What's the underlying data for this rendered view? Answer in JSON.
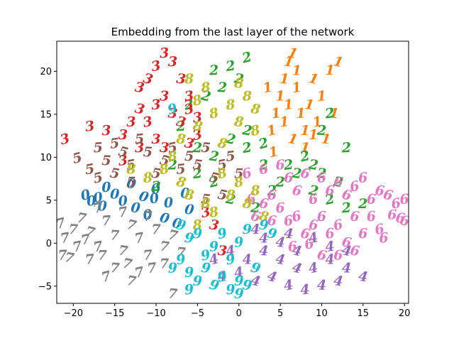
{
  "chart_data": {
    "type": "scatter",
    "title": "Embedding from the last layer of the network",
    "xlabel": "",
    "ylabel": "",
    "xlim": [
      -22,
      20.5
    ],
    "ylim": [
      -7,
      23.5
    ],
    "xticks": [
      -20,
      -15,
      -10,
      -5,
      0,
      5,
      10,
      15,
      20
    ],
    "yticks": [
      -5,
      0,
      5,
      10,
      15,
      20
    ],
    "grid": false,
    "colors": {
      "0": "#1f77b4",
      "1": "#ff7f0e",
      "2": "#2ca02c",
      "3": "#d62728",
      "4": "#9467bd",
      "5": "#8c564b",
      "6": "#e377c2",
      "7": "#7f7f7f",
      "8": "#bcbd22",
      "9": "#17becf"
    },
    "series": [
      {
        "label": "0",
        "points": [
          [
            -18.5,
            5.5
          ],
          [
            -17,
            5.2
          ],
          [
            -16,
            6.4
          ],
          [
            -15,
            5.6
          ],
          [
            -13,
            6.8
          ],
          [
            -11.5,
            5.3
          ],
          [
            -10.2,
            5.1
          ],
          [
            -8.5,
            4.6
          ],
          [
            -6.5,
            5.7
          ],
          [
            -6,
            3.8
          ],
          [
            -9,
            2.8
          ],
          [
            -11,
            3.2
          ],
          [
            -14,
            4.8
          ],
          [
            -16.5,
            4.2
          ],
          [
            -12.5,
            4.0
          ],
          [
            -7.5,
            2.2
          ],
          [
            -10,
            6.2
          ],
          [
            -17.8,
            4.8
          ]
        ]
      },
      {
        "label": "1",
        "points": [
          [
            4,
            13
          ],
          [
            4.5,
            15
          ],
          [
            5,
            17
          ],
          [
            5.5,
            19
          ],
          [
            6,
            21
          ],
          [
            6.5,
            22
          ],
          [
            7,
            18
          ],
          [
            7.5,
            15
          ],
          [
            8,
            13
          ],
          [
            8.5,
            16
          ],
          [
            9,
            19
          ],
          [
            9.5,
            14
          ],
          [
            10,
            17
          ],
          [
            11,
            20
          ],
          [
            10.5,
            12
          ],
          [
            6.5,
            12
          ],
          [
            3.5,
            18
          ],
          [
            5.5,
            14
          ],
          [
            7,
            20
          ],
          [
            8,
            11
          ],
          [
            12,
            21
          ],
          [
            4.2,
            10.5
          ],
          [
            6,
            16
          ],
          [
            9,
            12.5
          ],
          [
            11.5,
            15
          ]
        ]
      },
      {
        "label": "2",
        "points": [
          [
            1,
            21.5
          ],
          [
            -1,
            20.5
          ],
          [
            -3,
            20
          ],
          [
            -2,
            18
          ],
          [
            0,
            19
          ],
          [
            -4,
            17
          ],
          [
            -6,
            16
          ],
          [
            -7,
            13.5
          ],
          [
            -5,
            11
          ],
          [
            -3,
            10
          ],
          [
            -1,
            12
          ],
          [
            1,
            11
          ],
          [
            3,
            9
          ],
          [
            5,
            7
          ],
          [
            7,
            8
          ],
          [
            9,
            6
          ],
          [
            11,
            5
          ],
          [
            13,
            4
          ],
          [
            15,
            4.5
          ],
          [
            10,
            8
          ],
          [
            12,
            7
          ],
          [
            8,
            10
          ],
          [
            6,
            9
          ],
          [
            4,
            6
          ],
          [
            2,
            4
          ],
          [
            -1,
            5
          ],
          [
            -3,
            7
          ],
          [
            -5,
            8
          ],
          [
            -8,
            9
          ],
          [
            -10,
            6.5
          ],
          [
            1,
            13
          ],
          [
            3,
            11.5
          ],
          [
            11,
            15
          ],
          [
            13,
            11
          ],
          [
            10,
            13
          ],
          [
            9,
            9
          ]
        ]
      },
      {
        "label": "3",
        "points": [
          [
            -21,
            12
          ],
          [
            -18,
            13.5
          ],
          [
            -16,
            13
          ],
          [
            -14,
            12.5
          ],
          [
            -12,
            18
          ],
          [
            -11,
            19
          ],
          [
            -10,
            20.5
          ],
          [
            -9,
            22
          ],
          [
            -8,
            21
          ],
          [
            -7,
            19
          ],
          [
            -12,
            15.5
          ],
          [
            -11,
            14
          ],
          [
            -10,
            16
          ],
          [
            -9,
            17
          ],
          [
            -8,
            15
          ],
          [
            -7,
            14
          ],
          [
            -6,
            15.5
          ],
          [
            -5,
            14.5
          ],
          [
            -10,
            12
          ],
          [
            -9,
            11
          ],
          [
            -6,
            11.5
          ],
          [
            -5,
            12.5
          ],
          [
            -14,
            9.5
          ],
          [
            -12,
            11
          ],
          [
            -2,
            -1
          ],
          [
            -3,
            2
          ],
          [
            -4,
            3.5
          ],
          [
            -6,
            17
          ],
          [
            -13,
            14
          ]
        ]
      },
      {
        "label": "4",
        "points": [
          [
            -3,
            -2
          ],
          [
            -1,
            -1
          ],
          [
            1,
            -2
          ],
          [
            3,
            -1
          ],
          [
            5,
            -2
          ],
          [
            7,
            -3
          ],
          [
            9,
            -3
          ],
          [
            11,
            -2
          ],
          [
            13,
            -3
          ],
          [
            15,
            -4
          ],
          [
            4,
            -4
          ],
          [
            6,
            -5
          ],
          [
            8,
            -5.5
          ],
          [
            10,
            -5
          ],
          [
            12,
            -4.5
          ],
          [
            2,
            -4.5
          ],
          [
            0,
            -3.5
          ],
          [
            -2,
            -4
          ],
          [
            3,
            0.5
          ],
          [
            5,
            0
          ],
          [
            7,
            -1
          ],
          [
            9,
            0.5
          ],
          [
            11,
            -0.5
          ],
          [
            2,
            1.5
          ],
          [
            6,
            1
          ],
          [
            13,
            -1
          ]
        ]
      },
      {
        "label": "5",
        "points": [
          [
            -19.5,
            9.8
          ],
          [
            -18,
            8.5
          ],
          [
            -17,
            11
          ],
          [
            -16,
            9.5
          ],
          [
            -15,
            8
          ],
          [
            -14,
            10.5
          ],
          [
            -13,
            9
          ],
          [
            -12,
            12
          ],
          [
            -11,
            10.5
          ],
          [
            -10,
            8
          ],
          [
            -9,
            9.5
          ],
          [
            -8,
            11
          ],
          [
            -7,
            8.5
          ],
          [
            -6,
            10
          ],
          [
            -5,
            9
          ],
          [
            -3,
            7.5
          ],
          [
            -2,
            9
          ],
          [
            -1,
            10
          ],
          [
            0,
            8
          ],
          [
            -4,
            5
          ],
          [
            -2,
            5.5
          ],
          [
            -17,
            7.5
          ],
          [
            -15,
            11.5
          ],
          [
            -13,
            7
          ],
          [
            -4,
            11
          ]
        ]
      },
      {
        "label": "6",
        "points": [
          [
            1,
            8
          ],
          [
            3,
            8.5
          ],
          [
            5,
            9
          ],
          [
            6,
            7.5
          ],
          [
            7,
            6
          ],
          [
            8,
            8
          ],
          [
            9,
            5
          ],
          [
            10,
            7.5
          ],
          [
            11,
            6
          ],
          [
            12,
            7
          ],
          [
            13,
            5.5
          ],
          [
            14,
            6.5
          ],
          [
            15,
            7.5
          ],
          [
            16,
            5
          ],
          [
            17,
            6
          ],
          [
            18,
            5.5
          ],
          [
            19,
            4.5
          ],
          [
            20,
            5
          ],
          [
            18.5,
            3.2
          ],
          [
            19.5,
            2.8
          ],
          [
            20,
            2.5
          ],
          [
            17,
            1.5
          ],
          [
            16,
            3
          ],
          [
            15,
            1
          ],
          [
            14,
            3
          ],
          [
            13,
            0
          ],
          [
            12,
            2
          ],
          [
            11,
            1
          ],
          [
            10,
            3
          ],
          [
            9,
            2
          ],
          [
            8,
            1
          ],
          [
            7,
            3
          ],
          [
            6,
            2.5
          ],
          [
            5,
            4
          ],
          [
            4,
            2.5
          ],
          [
            3,
            4.5
          ],
          [
            2,
            3
          ],
          [
            1.5,
            5
          ],
          [
            17.5,
            0.5
          ],
          [
            12,
            -1.5
          ],
          [
            14,
            -1
          ],
          [
            10,
            -1.5
          ],
          [
            8.5,
            -0.2
          ],
          [
            6.5,
            -0.5
          ],
          [
            4,
            5.5
          ]
        ]
      },
      {
        "label": "7",
        "points": [
          [
            -21.5,
            2.2
          ],
          [
            -21,
            0.5
          ],
          [
            -21.3,
            -1.5
          ],
          [
            -20,
            1.5
          ],
          [
            -19,
            2.8
          ],
          [
            -18,
            1.2
          ],
          [
            -17,
            -0.5
          ],
          [
            -16,
            2.5
          ],
          [
            -15,
            0.8
          ],
          [
            -14,
            -1
          ],
          [
            -13,
            2
          ],
          [
            -12,
            0.5
          ],
          [
            -11,
            -1.5
          ],
          [
            -10,
            1.5
          ],
          [
            -9,
            -0.5
          ],
          [
            -8,
            0.8
          ],
          [
            -19.5,
            -0.5
          ],
          [
            -18,
            -2
          ],
          [
            -16.5,
            -1.5
          ],
          [
            -15,
            -3
          ],
          [
            -13.5,
            -2.5
          ],
          [
            -12,
            -3.5
          ],
          [
            -10.5,
            -3
          ],
          [
            -9,
            -2.5
          ],
          [
            -8,
            -6
          ],
          [
            -20.5,
            -1.8
          ],
          [
            -17,
            4
          ],
          [
            -14,
            3.5
          ],
          [
            -11,
            3
          ],
          [
            -7,
            -1.2
          ],
          [
            -13,
            -4.5
          ],
          [
            -16,
            -4
          ],
          [
            -18.5,
            0.3
          ]
        ]
      },
      {
        "label": "8",
        "points": [
          [
            -2,
            8
          ],
          [
            0,
            7
          ],
          [
            2,
            6
          ],
          [
            -1,
            5.5
          ],
          [
            1,
            4.5
          ],
          [
            3,
            3
          ],
          [
            -3,
            3.5
          ],
          [
            -5,
            2
          ],
          [
            -4,
            4.5
          ],
          [
            -6,
            5.5
          ],
          [
            -7,
            7
          ],
          [
            -9,
            8.5
          ],
          [
            -11,
            7.5
          ],
          [
            -13,
            8.5
          ],
          [
            -7,
            12
          ],
          [
            -5,
            13.5
          ],
          [
            -3,
            15
          ],
          [
            -1,
            16
          ],
          [
            1,
            17
          ],
          [
            0,
            14
          ],
          [
            -2,
            11.5
          ],
          [
            2,
            13
          ],
          [
            -4,
            18
          ],
          [
            -6,
            19
          ],
          [
            0,
            18.5
          ],
          [
            2,
            15.5
          ],
          [
            -5,
            16.5
          ],
          [
            -8,
            10
          ]
        ]
      },
      {
        "label": "9",
        "points": [
          [
            -8,
            15.5
          ],
          [
            -7,
            -2
          ],
          [
            -6,
            -3.5
          ],
          [
            -5,
            -4.5
          ],
          [
            -4,
            -3
          ],
          [
            -3,
            -5
          ],
          [
            -2,
            -4
          ],
          [
            -1,
            -5.5
          ],
          [
            0,
            -4.5
          ],
          [
            1,
            -5
          ],
          [
            2,
            -3
          ],
          [
            -1,
            -2
          ],
          [
            -3,
            -0.5
          ],
          [
            -5,
            1
          ],
          [
            -6,
            0.5
          ],
          [
            -7,
            2
          ],
          [
            -2,
            1
          ],
          [
            0,
            0
          ],
          [
            1,
            1.5
          ],
          [
            3,
            2
          ],
          [
            4,
            1
          ],
          [
            -4,
            -1.5
          ],
          [
            -6,
            -5.5
          ],
          [
            -8,
            -3
          ],
          [
            0,
            -6
          ]
        ]
      }
    ]
  }
}
